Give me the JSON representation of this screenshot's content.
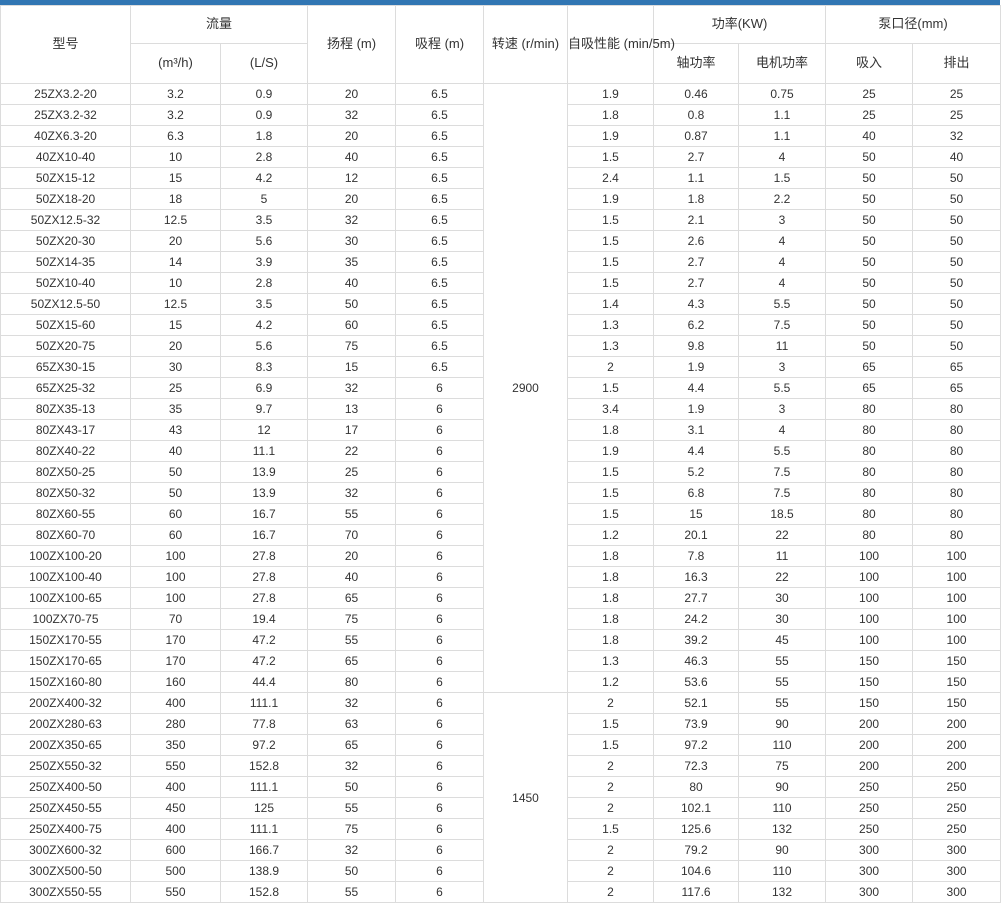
{
  "colors": {
    "accent_blue": "#3176b3",
    "grid_line": "#dcdcdc",
    "text": "#333333"
  },
  "table": {
    "header": {
      "model": "型号",
      "flow": "流量",
      "flow_m3h": "(m³/h)",
      "flow_ls": "(L/S)",
      "head": "扬程\n(m)",
      "suction": "吸程\n(m)",
      "speed": "转速\n(r/min)",
      "self_priming": "自吸性能\n(min/5m)",
      "power": "功率(KW)",
      "shaft_power": "轴功率",
      "motor_power": "电机功率",
      "port": "泵口径(mm)",
      "inlet": "吸入",
      "outlet": "排出"
    },
    "speed_groups": [
      {
        "value": "2900",
        "rows": 29
      },
      {
        "value": "1450",
        "rows": 10
      }
    ],
    "rows": [
      [
        "25ZX3.2-20",
        "3.2",
        "0.9",
        "20",
        "6.5",
        "1.9",
        "0.46",
        "0.75",
        "25",
        "25"
      ],
      [
        "25ZX3.2-32",
        "3.2",
        "0.9",
        "32",
        "6.5",
        "1.8",
        "0.8",
        "1.1",
        "25",
        "25"
      ],
      [
        "40ZX6.3-20",
        "6.3",
        "1.8",
        "20",
        "6.5",
        "1.9",
        "0.87",
        "1.1",
        "40",
        "32"
      ],
      [
        "40ZX10-40",
        "10",
        "2.8",
        "40",
        "6.5",
        "1.5",
        "2.7",
        "4",
        "50",
        "40"
      ],
      [
        "50ZX15-12",
        "15",
        "4.2",
        "12",
        "6.5",
        "2.4",
        "1.1",
        "1.5",
        "50",
        "50"
      ],
      [
        "50ZX18-20",
        "18",
        "5",
        "20",
        "6.5",
        "1.9",
        "1.8",
        "2.2",
        "50",
        "50"
      ],
      [
        "50ZX12.5-32",
        "12.5",
        "3.5",
        "32",
        "6.5",
        "1.5",
        "2.1",
        "3",
        "50",
        "50"
      ],
      [
        "50ZX20-30",
        "20",
        "5.6",
        "30",
        "6.5",
        "1.5",
        "2.6",
        "4",
        "50",
        "50"
      ],
      [
        "50ZX14-35",
        "14",
        "3.9",
        "35",
        "6.5",
        "1.5",
        "2.7",
        "4",
        "50",
        "50"
      ],
      [
        "50ZX10-40",
        "10",
        "2.8",
        "40",
        "6.5",
        "1.5",
        "2.7",
        "4",
        "50",
        "50"
      ],
      [
        "50ZX12.5-50",
        "12.5",
        "3.5",
        "50",
        "6.5",
        "1.4",
        "4.3",
        "5.5",
        "50",
        "50"
      ],
      [
        "50ZX15-60",
        "15",
        "4.2",
        "60",
        "6.5",
        "1.3",
        "6.2",
        "7.5",
        "50",
        "50"
      ],
      [
        "50ZX20-75",
        "20",
        "5.6",
        "75",
        "6.5",
        "1.3",
        "9.8",
        "11",
        "50",
        "50"
      ],
      [
        "65ZX30-15",
        "30",
        "8.3",
        "15",
        "6.5",
        "2",
        "1.9",
        "3",
        "65",
        "65"
      ],
      [
        "65ZX25-32",
        "25",
        "6.9",
        "32",
        "6",
        "1.5",
        "4.4",
        "5.5",
        "65",
        "65"
      ],
      [
        "80ZX35-13",
        "35",
        "9.7",
        "13",
        "6",
        "3.4",
        "1.9",
        "3",
        "80",
        "80"
      ],
      [
        "80ZX43-17",
        "43",
        "12",
        "17",
        "6",
        "1.8",
        "3.1",
        "4",
        "80",
        "80"
      ],
      [
        "80ZX40-22",
        "40",
        "11.1",
        "22",
        "6",
        "1.9",
        "4.4",
        "5.5",
        "80",
        "80"
      ],
      [
        "80ZX50-25",
        "50",
        "13.9",
        "25",
        "6",
        "1.5",
        "5.2",
        "7.5",
        "80",
        "80"
      ],
      [
        "80ZX50-32",
        "50",
        "13.9",
        "32",
        "6",
        "1.5",
        "6.8",
        "7.5",
        "80",
        "80"
      ],
      [
        "80ZX60-55",
        "60",
        "16.7",
        "55",
        "6",
        "1.5",
        "15",
        "18.5",
        "80",
        "80"
      ],
      [
        "80ZX60-70",
        "60",
        "16.7",
        "70",
        "6",
        "1.2",
        "20.1",
        "22",
        "80",
        "80"
      ],
      [
        "100ZX100-20",
        "100",
        "27.8",
        "20",
        "6",
        "1.8",
        "7.8",
        "11",
        "100",
        "100"
      ],
      [
        "100ZX100-40",
        "100",
        "27.8",
        "40",
        "6",
        "1.8",
        "16.3",
        "22",
        "100",
        "100"
      ],
      [
        "100ZX100-65",
        "100",
        "27.8",
        "65",
        "6",
        "1.8",
        "27.7",
        "30",
        "100",
        "100"
      ],
      [
        "100ZX70-75",
        "70",
        "19.4",
        "75",
        "6",
        "1.8",
        "24.2",
        "30",
        "100",
        "100"
      ],
      [
        "150ZX170-55",
        "170",
        "47.2",
        "55",
        "6",
        "1.8",
        "39.2",
        "45",
        "100",
        "100"
      ],
      [
        "150ZX170-65",
        "170",
        "47.2",
        "65",
        "6",
        "1.3",
        "46.3",
        "55",
        "150",
        "150"
      ],
      [
        "150ZX160-80",
        "160",
        "44.4",
        "80",
        "6",
        "1.2",
        "53.6",
        "55",
        "150",
        "150"
      ],
      [
        "200ZX400-32",
        "400",
        "111.1",
        "32",
        "6",
        "2",
        "52.1",
        "55",
        "150",
        "150"
      ],
      [
        "200ZX280-63",
        "280",
        "77.8",
        "63",
        "6",
        "1.5",
        "73.9",
        "90",
        "200",
        "200"
      ],
      [
        "200ZX350-65",
        "350",
        "97.2",
        "65",
        "6",
        "1.5",
        "97.2",
        "110",
        "200",
        "200"
      ],
      [
        "250ZX550-32",
        "550",
        "152.8",
        "32",
        "6",
        "2",
        "72.3",
        "75",
        "200",
        "200"
      ],
      [
        "250ZX400-50",
        "400",
        "111.1",
        "50",
        "6",
        "2",
        "80",
        "90",
        "250",
        "250"
      ],
      [
        "250ZX450-55",
        "450",
        "125",
        "55",
        "6",
        "2",
        "102.1",
        "110",
        "250",
        "250"
      ],
      [
        "250ZX400-75",
        "400",
        "111.1",
        "75",
        "6",
        "1.5",
        "125.6",
        "132",
        "250",
        "250"
      ],
      [
        "300ZX600-32",
        "600",
        "166.7",
        "32",
        "6",
        "2",
        "79.2",
        "90",
        "300",
        "300"
      ],
      [
        "300ZX500-50",
        "500",
        "138.9",
        "50",
        "6",
        "2",
        "104.6",
        "110",
        "300",
        "300"
      ],
      [
        "300ZX550-55",
        "550",
        "152.8",
        "55",
        "6",
        "2",
        "117.6",
        "132",
        "300",
        "300"
      ]
    ]
  }
}
